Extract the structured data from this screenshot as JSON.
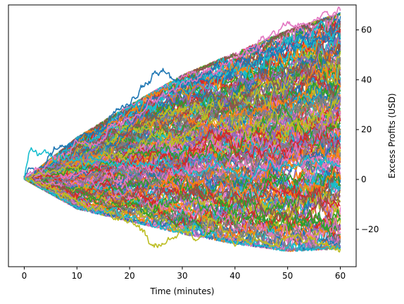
{
  "chart_data": {
    "type": "line",
    "title": "",
    "xlabel": "Time (minutes)",
    "ylabel": "Excess Profits (USD)",
    "xlim": [
      -3,
      63
    ],
    "ylim": [
      -35,
      70
    ],
    "x_ticks": [
      0,
      10,
      20,
      30,
      40,
      50,
      60
    ],
    "y_ticks": [
      -20,
      0,
      20,
      40,
      60
    ],
    "y_axis_side": "right",
    "grid": false,
    "legend": "none",
    "series_count": 200,
    "steps_per_path": 360,
    "series_colors": [
      "#1f77b4",
      "#ff7f0e",
      "#2ca02c",
      "#d62728",
      "#9467bd",
      "#8c564b",
      "#e377c2",
      "#7f7f7f",
      "#bcbd22",
      "#17becf"
    ],
    "envelope": {
      "x": [
        0,
        10,
        20,
        30,
        40,
        50,
        60
      ],
      "upper": [
        0,
        17,
        30,
        42,
        51,
        60,
        67
      ],
      "lower": [
        0,
        -12,
        -17,
        -22,
        -26,
        -29,
        -28
      ]
    },
    "highlight_paths": [
      {
        "color": "#1f77b4",
        "x": [
          0,
          5,
          10,
          15,
          20,
          25,
          30,
          35,
          40,
          45,
          50,
          55,
          60
        ],
        "y": [
          0,
          8,
          15,
          22,
          30,
          43,
          38,
          42,
          46,
          50,
          52,
          55,
          58
        ]
      },
      {
        "color": "#e377c2",
        "x": [
          0,
          5,
          10,
          15,
          20,
          25,
          30,
          35,
          40,
          45,
          50,
          55,
          60
        ],
        "y": [
          0,
          6,
          12,
          18,
          25,
          32,
          38,
          44,
          48,
          55,
          60,
          64,
          67
        ]
      },
      {
        "color": "#bcbd22",
        "x": [
          0,
          5,
          10,
          15,
          20,
          25,
          30,
          35,
          40,
          45,
          50,
          55,
          60
        ],
        "y": [
          0,
          -4,
          -8,
          -14,
          -18,
          -25,
          -24,
          -18,
          -24,
          -28,
          -22,
          -24,
          -27
        ]
      },
      {
        "color": "#17becf",
        "x": [
          0,
          1,
          2,
          4,
          6,
          10,
          15,
          20,
          25,
          30,
          40,
          50,
          60
        ],
        "y": [
          0,
          12,
          9,
          11,
          8,
          6,
          7,
          5,
          4,
          5,
          3,
          6,
          8
        ]
      }
    ]
  }
}
